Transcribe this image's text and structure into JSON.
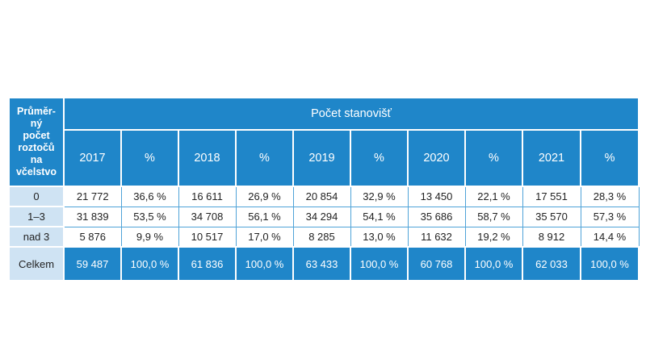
{
  "table": {
    "corner_lines": [
      "Průměr-",
      "ný",
      "počet",
      "roztočů",
      "na",
      "včelstvo"
    ],
    "group_header": "Počet stanovišť",
    "columns": [
      "2017",
      "%",
      "2018",
      "%",
      "2019",
      "%",
      "2020",
      "%",
      "2021",
      "%"
    ],
    "rows": [
      {
        "label": "0",
        "cells": [
          "21 772",
          "36,6 %",
          "16 611",
          "26,9 %",
          "20 854",
          "32,9 %",
          "13 450",
          "22,1 %",
          "17 551",
          "28,3 %"
        ]
      },
      {
        "label": "1–3",
        "cells": [
          "31 839",
          "53,5 %",
          "34 708",
          "56,1 %",
          "34 294",
          "54,1 %",
          "35 686",
          "58,7 %",
          "35 570",
          "57,3 %"
        ]
      },
      {
        "label": "nad 3",
        "cells": [
          "5 876",
          "9,9 %",
          "10 517",
          "17,0 %",
          "8 285",
          "13,0 %",
          "11 632",
          "19,2 %",
          "8 912",
          "14,4 %"
        ]
      }
    ],
    "total": {
      "label": "Celkem",
      "cells": [
        "59 487",
        "100,0 %",
        "61 836",
        "100,0 %",
        "63 433",
        "100,0 %",
        "60 768",
        "100,0 %",
        "62 033",
        "100,0 %"
      ]
    }
  },
  "colors": {
    "header_blue": "#1f86c9",
    "row_label_light_blue": "#cfe3f3",
    "grid_line_blue": "#4fa3d8"
  }
}
